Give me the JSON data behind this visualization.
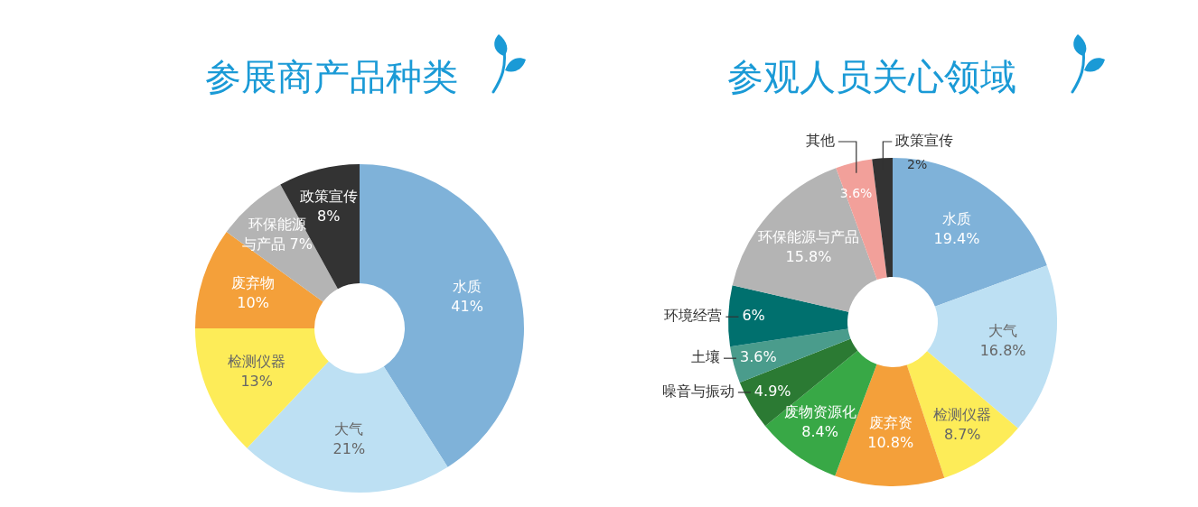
{
  "chart_data": [
    {
      "type": "donut",
      "title": "参展商产品种类",
      "categories": [
        "水质",
        "大气",
        "检测仪器",
        "废弃物",
        "环保能源与产品",
        "政策宣传"
      ],
      "values": [
        41,
        21,
        13,
        10,
        7,
        8
      ],
      "value_labels": [
        "41%",
        "21%",
        "13%",
        "10%",
        "7%",
        "8%"
      ],
      "colors": [
        "#7fb2d9",
        "#bde0f3",
        "#fdec58",
        "#f4a03a",
        "#b4b4b4",
        "#333333"
      ],
      "legend": false
    },
    {
      "type": "donut",
      "title": "参观人员关心领域",
      "categories": [
        "水质",
        "大气",
        "检测仪器",
        "废弃资",
        "废物资源化",
        "噪音与振动",
        "土壤",
        "环境经营",
        "环保能源与产品",
        "其他",
        "政策宣传"
      ],
      "values": [
        19.4,
        16.8,
        8.7,
        10.8,
        8.4,
        4.9,
        3.6,
        6,
        15.8,
        3.6,
        2
      ],
      "value_labels": [
        "19.4%",
        "16.8%",
        "8.7%",
        "10.8%",
        "8.4%",
        "4.9%",
        "3.6%",
        "6%",
        "15.8%",
        "3.6%",
        "2%"
      ],
      "colors": [
        "#7fb2d9",
        "#bde0f3",
        "#fdec58",
        "#f4a03a",
        "#38a846",
        "#2b7a33",
        "#4a9c8c",
        "#00706e",
        "#b4b4b4",
        "#f2a09a",
        "#333333"
      ],
      "legend": false
    }
  ]
}
